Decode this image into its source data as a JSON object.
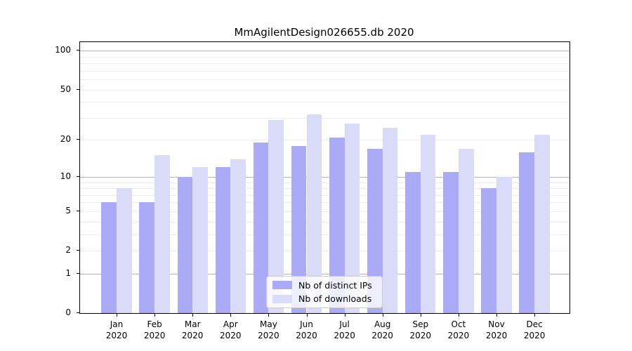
{
  "chart_data": {
    "type": "bar",
    "title": "MmAgilentDesign026655.db 2020",
    "year": "2020",
    "months": [
      "Jan",
      "Feb",
      "Mar",
      "Apr",
      "May",
      "Jun",
      "Jul",
      "Aug",
      "Sep",
      "Oct",
      "Nov",
      "Dec"
    ],
    "series": [
      {
        "name": "Nb of distinct IPs",
        "color": "#aaaaf6",
        "values": [
          6,
          6,
          10,
          12,
          19,
          18,
          21,
          17,
          11,
          11,
          8,
          16
        ]
      },
      {
        "name": "Nb of downloads",
        "color": "#dadaf9",
        "values": [
          8,
          15,
          12,
          14,
          29,
          32,
          27,
          25,
          22,
          17,
          10,
          22
        ]
      }
    ],
    "y_scale": "log1p",
    "y_axis_max": 116.5,
    "y_tick_labels": [
      100,
      50,
      20,
      10,
      5,
      2,
      1,
      0
    ],
    "major_gridlines": [
      1,
      10,
      100
    ],
    "minor_gridlines": [
      2,
      3,
      4,
      5,
      6,
      7,
      8,
      9,
      20,
      30,
      40,
      50,
      60,
      70,
      80,
      90
    ],
    "legend_position": "lower center",
    "grid": "on",
    "colors": {
      "major_grid": "#b3b3b3",
      "minor_grid": "#ececec",
      "spine": "#000000"
    }
  }
}
